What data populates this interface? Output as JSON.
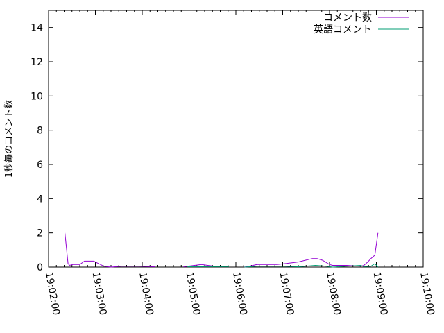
{
  "chart_data": {
    "type": "line",
    "title": "",
    "xlabel": "",
    "ylabel": "1秒毎のコメント数",
    "xlim": [
      "19:02:00",
      "19:10:00"
    ],
    "ylim": [
      0,
      15
    ],
    "xticks": [
      "19:02:00",
      "19:03:00",
      "19:04:00",
      "19:05:00",
      "19:06:00",
      "19:07:00",
      "19:08:00",
      "19:09:00",
      "19:10:00"
    ],
    "yticks": [
      "0",
      "2",
      "4",
      "6",
      "8",
      "10",
      "12",
      "14"
    ],
    "grid": false,
    "legend_position": "top-right",
    "series": [
      {
        "name": "コメント数",
        "color": "#9400d3",
        "points": [
          [
            "19:02:21",
            2.0
          ],
          [
            "19:02:25",
            0.2
          ],
          [
            "19:02:27",
            0.1
          ],
          [
            "19:02:31",
            0.15
          ],
          [
            "19:02:40",
            0.15
          ],
          [
            "19:02:46",
            0.35
          ],
          [
            "19:02:58",
            0.35
          ],
          [
            "19:03:02",
            0.25
          ],
          [
            "19:03:11",
            0.05
          ],
          [
            "19:03:20",
            0.0
          ],
          [
            "19:03:33",
            0.05
          ],
          [
            "19:03:56",
            0.05
          ],
          [
            "19:04:16",
            0.02
          ],
          null,
          [
            "19:04:53",
            0.02
          ],
          [
            "19:05:07",
            0.1
          ],
          [
            "19:05:16",
            0.15
          ],
          [
            "19:05:24",
            0.1
          ],
          [
            "19:05:33",
            0.05
          ],
          null,
          [
            "19:06:11",
            0.0
          ],
          [
            "19:06:22",
            0.1
          ],
          [
            "19:06:27",
            0.15
          ],
          [
            "19:06:53",
            0.15
          ],
          [
            "19:07:02",
            0.2
          ],
          [
            "19:07:20",
            0.3
          ],
          [
            "19:07:29",
            0.4
          ],
          [
            "19:07:38",
            0.5
          ],
          [
            "19:07:44",
            0.5
          ],
          [
            "19:07:51",
            0.4
          ],
          [
            "19:08:00",
            0.15
          ],
          [
            "19:08:04",
            0.1
          ],
          [
            "19:08:22",
            0.1
          ],
          [
            "19:08:40",
            0.05
          ],
          [
            "19:08:44",
            0.1
          ],
          [
            "19:08:49",
            0.3
          ],
          [
            "19:08:53",
            0.5
          ],
          [
            "19:08:58",
            0.7
          ],
          [
            "19:09:02",
            2.0
          ]
        ]
      },
      {
        "name": "英語コメント",
        "color": "#009e73",
        "points": [
          [
            "19:04:58",
            0.02
          ],
          [
            "19:05:51",
            0.03
          ],
          null,
          [
            "19:06:11",
            0.0
          ],
          [
            "19:06:27",
            0.05
          ],
          [
            "19:07:02",
            0.05
          ],
          [
            "19:07:20",
            0.02
          ],
          [
            "19:07:29",
            0.05
          ],
          [
            "19:07:42",
            0.1
          ],
          [
            "19:07:56",
            0.05
          ],
          [
            "19:08:04",
            0.0
          ],
          [
            "19:08:22",
            0.05
          ],
          [
            "19:08:40",
            0.1
          ],
          [
            "19:08:44",
            0.03
          ],
          [
            "19:08:53",
            0.05
          ],
          [
            "19:08:58",
            0.2
          ],
          [
            "19:09:02",
            0.0
          ]
        ]
      }
    ]
  }
}
